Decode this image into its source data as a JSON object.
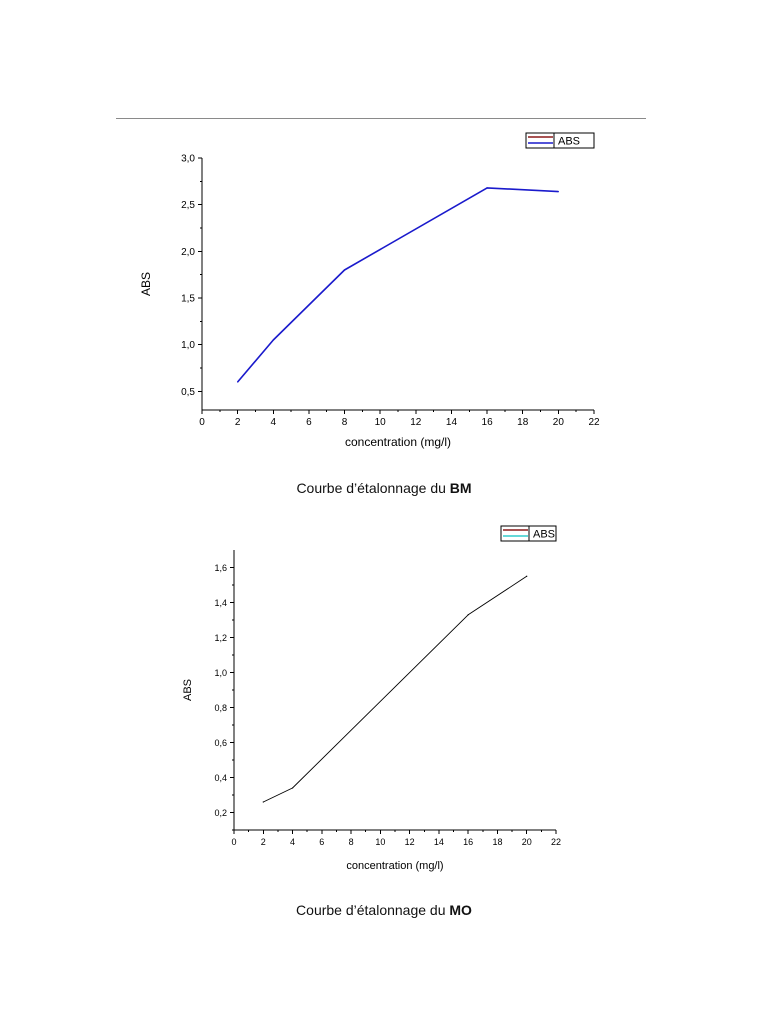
{
  "captions": {
    "bm": {
      "text": "Courbe d’étalonnage du ",
      "bold": "BM"
    },
    "mo": {
      "text": "Courbe d’étalonnage du ",
      "bold": "MO"
    }
  },
  "chart_data": [
    {
      "type": "line",
      "xlabel": "concentration (mg/l)",
      "ylabel": "ABS",
      "xlim": [
        0,
        22
      ],
      "ylim": [
        0.3,
        3.0
      ],
      "x_ticks": [
        "0",
        "2",
        "4",
        "6",
        "8",
        "10",
        "12",
        "14",
        "16",
        "18",
        "20",
        "22"
      ],
      "y_ticks": [
        "0,5",
        "1,0",
        "1,5",
        "2,0",
        "2,5",
        "3,0"
      ],
      "grid": false,
      "legend": {
        "position": "top-right",
        "entries": [
          "ABS"
        ]
      },
      "series": [
        {
          "name": "ABS",
          "color": "#1a1acc",
          "x": [
            2,
            4,
            8,
            16,
            20
          ],
          "y": [
            0.6,
            1.05,
            1.8,
            2.68,
            2.64
          ]
        }
      ]
    },
    {
      "type": "line",
      "xlabel": "concentration (mg/l)",
      "ylabel": "ABS",
      "xlim": [
        0,
        22
      ],
      "ylim": [
        0.1,
        1.7
      ],
      "x_ticks": [
        "0",
        "2",
        "4",
        "6",
        "8",
        "10",
        "12",
        "14",
        "16",
        "18",
        "20",
        "22"
      ],
      "y_ticks": [
        "0,2",
        "0,4",
        "0,6",
        "0,8",
        "1,0",
        "1,2",
        "1,4",
        "1,6"
      ],
      "grid": false,
      "legend": {
        "position": "top-right",
        "entries": [
          "ABS"
        ]
      },
      "series": [
        {
          "name": "ABS",
          "color": "#000000",
          "x": [
            2,
            4,
            16,
            20
          ],
          "y": [
            0.26,
            0.34,
            1.33,
            1.55
          ]
        }
      ]
    }
  ]
}
